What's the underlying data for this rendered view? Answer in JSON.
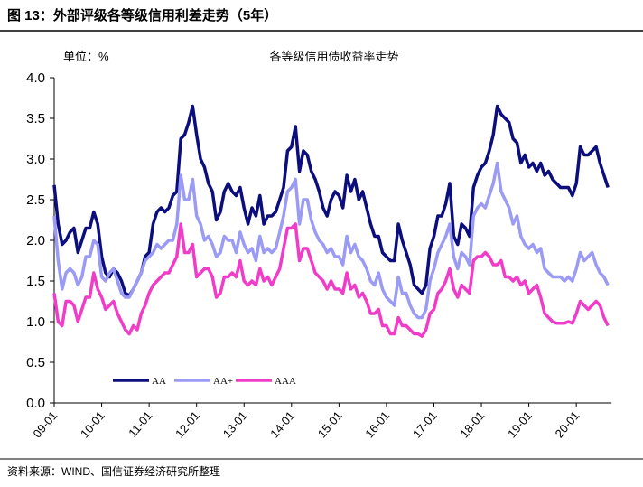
{
  "header": {
    "title": "图 13：外部评级各等级信用利差走势（5年）"
  },
  "chart_data": {
    "type": "line",
    "title": "各等级信用债收益率走势",
    "unit_label": "单位：%",
    "categories": [
      "09-01",
      null,
      null,
      null,
      null,
      null,
      null,
      null,
      null,
      null,
      null,
      null,
      "10-01",
      null,
      null,
      null,
      null,
      null,
      null,
      null,
      null,
      null,
      null,
      null,
      "11-01",
      null,
      null,
      null,
      null,
      null,
      null,
      null,
      null,
      null,
      null,
      null,
      "12-01",
      null,
      null,
      null,
      null,
      null,
      null,
      null,
      null,
      null,
      null,
      null,
      "13-01",
      null,
      null,
      null,
      null,
      null,
      null,
      null,
      null,
      null,
      null,
      null,
      "14-01",
      null,
      null,
      null,
      null,
      null,
      null,
      null,
      null,
      null,
      null,
      null,
      "15-01",
      null,
      null,
      null,
      null,
      null,
      null,
      null,
      null,
      null,
      null,
      null,
      "16-01",
      null,
      null,
      null,
      null,
      null,
      null,
      null,
      null,
      null,
      null,
      null,
      "17-01",
      null,
      null,
      null,
      null,
      null,
      null,
      null,
      null,
      null,
      null,
      null,
      "18-01",
      null,
      null,
      null,
      null,
      null,
      null,
      null,
      null,
      null,
      null,
      null,
      "19-01",
      null,
      null,
      null,
      null,
      null,
      null,
      null,
      null,
      null,
      null,
      null,
      "20-01",
      null,
      null,
      null,
      null,
      null,
      null,
      null,
      null
    ],
    "series": [
      {
        "name": "AA",
        "color": "#0b0e7c",
        "values": [
          2.68,
          2.2,
          1.95,
          2.0,
          2.1,
          2.15,
          1.85,
          2.0,
          2.15,
          2.15,
          2.35,
          2.2,
          1.8,
          1.6,
          1.55,
          1.65,
          1.6,
          1.5,
          1.35,
          1.32,
          1.4,
          1.5,
          1.6,
          1.8,
          1.85,
          2.2,
          2.35,
          2.4,
          2.35,
          2.4,
          2.55,
          2.6,
          3.25,
          3.3,
          3.45,
          3.65,
          3.3,
          3.0,
          2.9,
          2.7,
          2.6,
          2.25,
          2.35,
          2.6,
          2.7,
          2.6,
          2.55,
          2.65,
          2.4,
          2.2,
          2.4,
          2.3,
          2.55,
          2.2,
          2.3,
          2.3,
          2.35,
          2.5,
          2.65,
          3.1,
          3.15,
          3.4,
          2.85,
          3.1,
          3.05,
          2.85,
          2.75,
          2.6,
          2.4,
          2.3,
          2.5,
          2.6,
          2.55,
          2.4,
          2.8,
          2.6,
          2.75,
          2.5,
          2.6,
          2.4,
          2.2,
          2.05,
          2.05,
          1.85,
          1.8,
          1.75,
          1.75,
          2.2,
          2.0,
          1.85,
          1.7,
          1.45,
          1.4,
          1.35,
          1.45,
          1.9,
          2.05,
          2.3,
          2.3,
          2.45,
          2.7,
          2.05,
          1.95,
          2.2,
          2.15,
          2.05,
          2.65,
          2.8,
          2.9,
          2.95,
          3.1,
          3.3,
          3.65,
          3.55,
          3.5,
          3.45,
          3.25,
          3.2,
          2.95,
          3.05,
          2.9,
          2.95,
          2.85,
          2.95,
          2.8,
          2.85,
          2.75,
          2.7,
          2.65,
          2.65,
          2.65,
          2.55,
          2.7,
          3.15,
          3.05,
          3.05,
          3.1,
          3.15,
          2.95,
          2.8,
          2.65
        ]
      },
      {
        "name": "AA+",
        "color": "#9b9bf5",
        "values": [
          2.3,
          1.75,
          1.4,
          1.6,
          1.65,
          1.6,
          1.45,
          1.55,
          1.8,
          1.8,
          2.0,
          1.95,
          1.55,
          1.5,
          1.6,
          1.65,
          1.5,
          1.35,
          1.3,
          1.3,
          1.4,
          1.5,
          1.6,
          1.75,
          1.8,
          1.85,
          1.95,
          1.9,
          1.95,
          2.0,
          2.0,
          2.2,
          2.8,
          2.5,
          2.5,
          2.75,
          2.3,
          2.2,
          2.0,
          2.05,
          1.95,
          1.8,
          1.85,
          2.05,
          2.0,
          2.0,
          1.85,
          2.1,
          1.95,
          1.85,
          1.9,
          1.75,
          2.05,
          1.85,
          1.9,
          1.85,
          1.9,
          2.1,
          2.3,
          2.6,
          2.65,
          2.75,
          2.2,
          2.5,
          2.5,
          2.25,
          2.1,
          2.0,
          1.95,
          1.85,
          1.9,
          1.8,
          1.8,
          1.7,
          2.05,
          1.85,
          1.95,
          1.8,
          1.75,
          1.65,
          1.5,
          1.45,
          1.6,
          1.4,
          1.3,
          1.25,
          1.2,
          1.55,
          1.35,
          1.35,
          1.2,
          1.1,
          1.05,
          1.05,
          1.15,
          1.5,
          1.65,
          1.85,
          1.95,
          2.05,
          2.2,
          1.8,
          1.65,
          1.85,
          1.8,
          1.7,
          2.3,
          2.4,
          2.45,
          2.4,
          2.55,
          2.7,
          2.95,
          2.6,
          2.5,
          2.4,
          2.2,
          2.3,
          2.05,
          1.95,
          1.9,
          1.95,
          1.85,
          1.9,
          1.65,
          1.6,
          1.55,
          1.55,
          1.55,
          1.5,
          1.55,
          1.5,
          1.65,
          1.85,
          1.75,
          1.8,
          1.85,
          1.7,
          1.6,
          1.55,
          1.45
        ]
      },
      {
        "name": "AAA",
        "color": "#f03cc8",
        "values": [
          1.35,
          1.0,
          0.95,
          1.25,
          1.25,
          1.2,
          1.0,
          1.15,
          1.3,
          1.3,
          1.6,
          1.4,
          1.3,
          1.15,
          1.2,
          1.25,
          1.1,
          1.0,
          0.9,
          0.85,
          0.95,
          0.9,
          1.1,
          1.2,
          1.35,
          1.45,
          1.5,
          1.55,
          1.6,
          1.6,
          1.7,
          1.8,
          2.2,
          1.85,
          1.85,
          1.95,
          1.55,
          1.6,
          1.65,
          1.65,
          1.55,
          1.3,
          1.35,
          1.55,
          1.55,
          1.6,
          1.55,
          1.75,
          1.5,
          1.45,
          1.5,
          1.45,
          1.65,
          1.5,
          1.55,
          1.45,
          1.55,
          1.65,
          1.9,
          2.15,
          2.15,
          2.2,
          1.75,
          1.9,
          1.9,
          1.75,
          1.6,
          1.55,
          1.5,
          1.4,
          1.5,
          1.4,
          1.4,
          1.35,
          1.6,
          1.4,
          1.45,
          1.3,
          1.35,
          1.25,
          1.1,
          1.1,
          1.15,
          0.95,
          0.95,
          0.85,
          0.85,
          1.05,
          0.95,
          0.95,
          0.9,
          0.85,
          0.85,
          0.82,
          0.9,
          1.1,
          1.15,
          1.35,
          1.4,
          1.5,
          1.65,
          1.4,
          1.3,
          1.45,
          1.4,
          1.35,
          1.75,
          1.8,
          1.8,
          1.85,
          1.8,
          1.7,
          1.7,
          1.75,
          1.55,
          1.55,
          1.5,
          1.55,
          1.45,
          1.5,
          1.35,
          1.4,
          1.45,
          1.3,
          1.1,
          1.05,
          1.0,
          0.98,
          0.98,
          0.98,
          1.0,
          0.98,
          1.1,
          1.25,
          1.2,
          1.15,
          1.2,
          1.25,
          1.2,
          1.05,
          0.95
        ]
      }
    ],
    "ylim": [
      0,
      4
    ],
    "yticks": [
      {
        "value": 0,
        "label": "0.0"
      },
      0.5,
      {
        "value": 1,
        "label": "1.0"
      },
      1.5,
      {
        "value": 2,
        "label": "2.0"
      },
      2.5,
      {
        "value": 3,
        "label": "3.0"
      },
      3.5,
      {
        "value": 4,
        "label": "4.0"
      }
    ],
    "grid": false,
    "legend": "lower left"
  },
  "source": "资料来源：WIND、国信证券经济研究所整理"
}
